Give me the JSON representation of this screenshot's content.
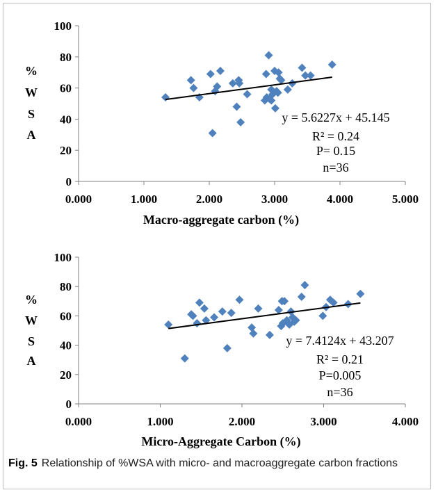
{
  "caption": {
    "label": "Fig. 5",
    "text": "Relationship of %WSA with micro- and macroaggregate carbon fractions"
  },
  "chart_data": [
    {
      "type": "scatter",
      "xlabel": "Macro-aggregate carbon (%)",
      "ylabel": [
        "%",
        "W",
        "S",
        "A"
      ],
      "xlim": [
        0,
        5
      ],
      "ylim": [
        0,
        100
      ],
      "xticks": [
        "0.000",
        "1.000",
        "2.000",
        "3.000",
        "4.000",
        "5.000"
      ],
      "yticks": [
        "0",
        "20",
        "40",
        "60",
        "80",
        "100"
      ],
      "trendline": {
        "slope": 5.6227,
        "intercept": 45.145,
        "x_range": [
          1.33,
          3.88
        ]
      },
      "annotations": [
        "y = 5.6227x + 45.145",
        "R² = 0.24",
        "P= 0.15",
        "n=36"
      ],
      "points": [
        [
          1.33,
          54
        ],
        [
          1.72,
          65
        ],
        [
          1.76,
          60
        ],
        [
          1.85,
          54
        ],
        [
          2.02,
          69
        ],
        [
          2.05,
          31
        ],
        [
          2.09,
          58
        ],
        [
          2.12,
          61
        ],
        [
          2.17,
          71
        ],
        [
          2.36,
          63
        ],
        [
          2.42,
          48
        ],
        [
          2.45,
          65
        ],
        [
          2.46,
          63
        ],
        [
          2.48,
          38
        ],
        [
          2.58,
          56
        ],
        [
          2.85,
          52
        ],
        [
          2.87,
          69
        ],
        [
          2.88,
          54
        ],
        [
          2.91,
          81
        ],
        [
          2.92,
          53
        ],
        [
          2.95,
          59
        ],
        [
          2.97,
          56
        ],
        [
          3.0,
          71
        ],
        [
          3.01,
          47
        ],
        [
          3.03,
          58
        ],
        [
          3.05,
          57
        ],
        [
          3.06,
          70
        ],
        [
          3.08,
          66
        ],
        [
          3.2,
          59
        ],
        [
          3.27,
          63
        ],
        [
          3.42,
          73
        ],
        [
          3.47,
          68
        ],
        [
          3.55,
          68
        ],
        [
          3.88,
          75
        ],
        [
          2.95,
          52
        ],
        [
          3.1,
          65
        ]
      ]
    },
    {
      "type": "scatter",
      "xlabel": "Micro-Aggregate Carbon (%)",
      "ylabel": [
        "%",
        "W",
        "S",
        "A"
      ],
      "xlim": [
        0,
        4
      ],
      "ylim": [
        0,
        100
      ],
      "xticks": [
        "0.000",
        "1.000",
        "2.000",
        "3.000",
        "4.000"
      ],
      "yticks": [
        "0",
        "20",
        "40",
        "60",
        "80",
        "100"
      ],
      "trendline": {
        "slope": 7.4124,
        "intercept": 43.207,
        "x_range": [
          1.1,
          3.45
        ]
      },
      "annotations": [
        "y = 7.4124x + 43.207",
        "R² = 0.21",
        "P=0.005",
        "n=36"
      ],
      "points": [
        [
          1.1,
          54
        ],
        [
          1.3,
          31
        ],
        [
          1.38,
          61
        ],
        [
          1.4,
          60
        ],
        [
          1.45,
          55
        ],
        [
          1.48,
          69
        ],
        [
          1.54,
          65
        ],
        [
          1.56,
          57
        ],
        [
          1.66,
          59
        ],
        [
          1.76,
          63
        ],
        [
          1.82,
          38
        ],
        [
          1.87,
          62
        ],
        [
          1.97,
          71
        ],
        [
          2.12,
          52
        ],
        [
          2.14,
          48
        ],
        [
          2.2,
          65
        ],
        [
          2.34,
          47
        ],
        [
          2.45,
          64
        ],
        [
          2.48,
          53
        ],
        [
          2.49,
          70
        ],
        [
          2.52,
          70
        ],
        [
          2.55,
          57
        ],
        [
          2.58,
          54
        ],
        [
          2.6,
          63
        ],
        [
          2.62,
          59
        ],
        [
          2.64,
          56
        ],
        [
          2.66,
          57
        ],
        [
          2.73,
          73
        ],
        [
          2.77,
          81
        ],
        [
          2.99,
          60
        ],
        [
          3.03,
          66
        ],
        [
          3.08,
          71
        ],
        [
          3.12,
          69
        ],
        [
          3.3,
          68
        ],
        [
          3.45,
          75
        ],
        [
          2.5,
          55
        ]
      ]
    }
  ]
}
